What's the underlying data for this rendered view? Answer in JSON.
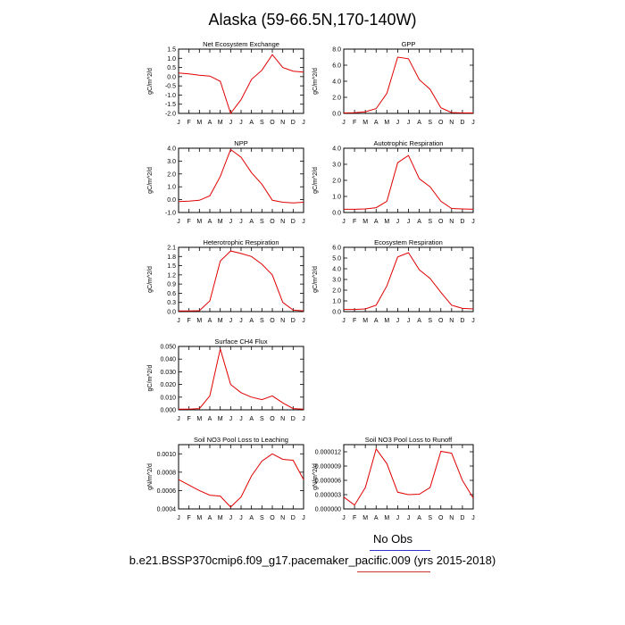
{
  "page_title": "Alaska (59-66.5N,170-140W)",
  "legend_label": "No Obs",
  "footer": "b.e21.BSSP370cmip6.f09_g17.pacemaker_pacific.009 (yrs 2015-2018)",
  "colors": {
    "series_line": "#e00000",
    "legend_rule": "#3333cc",
    "footer_rule": "#cc3333",
    "axes": "#000000"
  },
  "chart_data": [
    {
      "type": "line",
      "title": "Net Ecosystem Exchange",
      "ylabel": "gC/m^2/d",
      "x": [
        "J",
        "F",
        "M",
        "A",
        "M",
        "J",
        "J",
        "A",
        "S",
        "O",
        "N",
        "D",
        "J"
      ],
      "ylim": [
        -2.0,
        1.5
      ],
      "yticks": [
        "1.5",
        "1.0",
        "0.5",
        "0.0",
        "-0.5",
        "-1.0",
        "-1.5",
        "-2.0"
      ],
      "series": [
        {
          "values": [
            0.2,
            0.15,
            0.08,
            0.03,
            -0.25,
            -2.0,
            -1.25,
            -0.15,
            0.35,
            1.2,
            0.5,
            0.3,
            0.25
          ]
        }
      ]
    },
    {
      "type": "line",
      "title": "GPP",
      "ylabel": "gC/m^2/d",
      "x": [
        "J",
        "F",
        "M",
        "A",
        "M",
        "J",
        "J",
        "A",
        "S",
        "O",
        "N",
        "D",
        "J"
      ],
      "ylim": [
        0,
        8.0
      ],
      "yticks": [
        "8.0",
        "6.0",
        "4.0",
        "2.0",
        "0.0"
      ],
      "series": [
        {
          "values": [
            0.05,
            0.08,
            0.2,
            0.6,
            2.5,
            7.0,
            6.8,
            4.2,
            3.0,
            0.7,
            0.1,
            0.05,
            0.05
          ]
        }
      ]
    },
    {
      "type": "line",
      "title": "NPP",
      "ylabel": "gC/m^2/d",
      "x": [
        "J",
        "F",
        "M",
        "A",
        "M",
        "J",
        "J",
        "A",
        "S",
        "O",
        "N",
        "D",
        "J"
      ],
      "ylim": [
        -1.0,
        4.0
      ],
      "yticks": [
        "4.0",
        "3.0",
        "2.0",
        "1.0",
        "0.0",
        "-1.0"
      ],
      "series": [
        {
          "values": [
            -0.15,
            -0.12,
            -0.05,
            0.3,
            1.8,
            3.9,
            3.3,
            2.1,
            1.2,
            -0.05,
            -0.2,
            -0.25,
            -0.2
          ]
        }
      ]
    },
    {
      "type": "line",
      "title": "Autotrophic Respiration",
      "ylabel": "gC/m^2/d",
      "x": [
        "J",
        "F",
        "M",
        "A",
        "M",
        "J",
        "J",
        "A",
        "S",
        "O",
        "N",
        "D",
        "J"
      ],
      "ylim": [
        0,
        4.0
      ],
      "yticks": [
        "4.0",
        "3.0",
        "2.0",
        "1.0",
        "0.0"
      ],
      "series": [
        {
          "values": [
            0.2,
            0.2,
            0.22,
            0.3,
            0.7,
            3.1,
            3.55,
            2.1,
            1.6,
            0.7,
            0.25,
            0.22,
            0.2
          ]
        }
      ]
    },
    {
      "type": "line",
      "title": "Heterotrophic Respiration",
      "ylabel": "gC/m^2/d",
      "x": [
        "J",
        "F",
        "M",
        "A",
        "M",
        "J",
        "J",
        "A",
        "S",
        "O",
        "N",
        "D",
        "J"
      ],
      "ylim": [
        0,
        2.1
      ],
      "yticks": [
        "2.1",
        "1.8",
        "1.5",
        "1.2",
        "0.9",
        "0.6",
        "0.3",
        "0.0"
      ],
      "series": [
        {
          "values": [
            0.02,
            0.02,
            0.03,
            0.35,
            1.65,
            1.98,
            1.9,
            1.8,
            1.55,
            1.2,
            0.3,
            0.05,
            0.02
          ]
        }
      ]
    },
    {
      "type": "line",
      "title": "Ecosystem Respiration",
      "ylabel": "gC/m^2/d",
      "x": [
        "J",
        "F",
        "M",
        "A",
        "M",
        "J",
        "J",
        "A",
        "S",
        "O",
        "N",
        "D",
        "J"
      ],
      "ylim": [
        0,
        6.0
      ],
      "yticks": [
        "6.0",
        "5.0",
        "4.0",
        "3.0",
        "2.0",
        "1.0",
        "0.0"
      ],
      "series": [
        {
          "values": [
            0.2,
            0.2,
            0.25,
            0.6,
            2.4,
            5.1,
            5.5,
            3.9,
            3.1,
            1.8,
            0.6,
            0.3,
            0.25
          ]
        }
      ]
    },
    {
      "type": "line",
      "title": "Surface CH4 Flux",
      "ylabel": "gC/m^2/d",
      "x": [
        "J",
        "F",
        "M",
        "A",
        "M",
        "J",
        "J",
        "A",
        "S",
        "O",
        "N",
        "D",
        "J"
      ],
      "ylim": [
        0,
        0.05
      ],
      "yticks": [
        "0.050",
        "0.040",
        "0.030",
        "0.020",
        "0.010",
        "0.000"
      ],
      "series": [
        {
          "values": [
            0.0005,
            0.0005,
            0.001,
            0.011,
            0.048,
            0.02,
            0.0135,
            0.01,
            0.008,
            0.011,
            0.0055,
            0.001,
            0.0005
          ]
        }
      ]
    },
    {
      "type": "line",
      "title": "Soil NO3 Pool Loss to Leaching",
      "ylabel": "gN/m^2/d",
      "x": [
        "J",
        "F",
        "M",
        "A",
        "M",
        "J",
        "J",
        "A",
        "S",
        "O",
        "N",
        "D",
        "J"
      ],
      "ylim": [
        0.0004,
        0.0011
      ],
      "yticks": [
        "0.0010",
        "0.0008",
        "0.0006",
        "0.0004"
      ],
      "series": [
        {
          "values": [
            0.00072,
            0.00066,
            0.0006,
            0.00055,
            0.00054,
            0.00042,
            0.00053,
            0.00076,
            0.00092,
            0.001,
            0.00094,
            0.00093,
            0.00072
          ]
        }
      ]
    },
    {
      "type": "line",
      "title": "Soil NO3 Pool Loss to Runoff",
      "ylabel": "gN/m^2/d",
      "x": [
        "J",
        "F",
        "M",
        "A",
        "M",
        "J",
        "J",
        "A",
        "S",
        "O",
        "N",
        "D",
        "J"
      ],
      "ylim": [
        0,
        1.35e-05
      ],
      "yticks": [
        "0.000012",
        "0.000009",
        "0.000006",
        "0.000003",
        "0.000000"
      ],
      "series": [
        {
          "values": [
            2.5e-06,
            8e-07,
            4.5e-06,
            1.26e-05,
            9.5e-06,
            3.5e-06,
            3e-06,
            3.1e-06,
            4.5e-06,
            1.21e-05,
            1.17e-05,
            6e-06,
            2.3e-06
          ]
        }
      ]
    }
  ]
}
